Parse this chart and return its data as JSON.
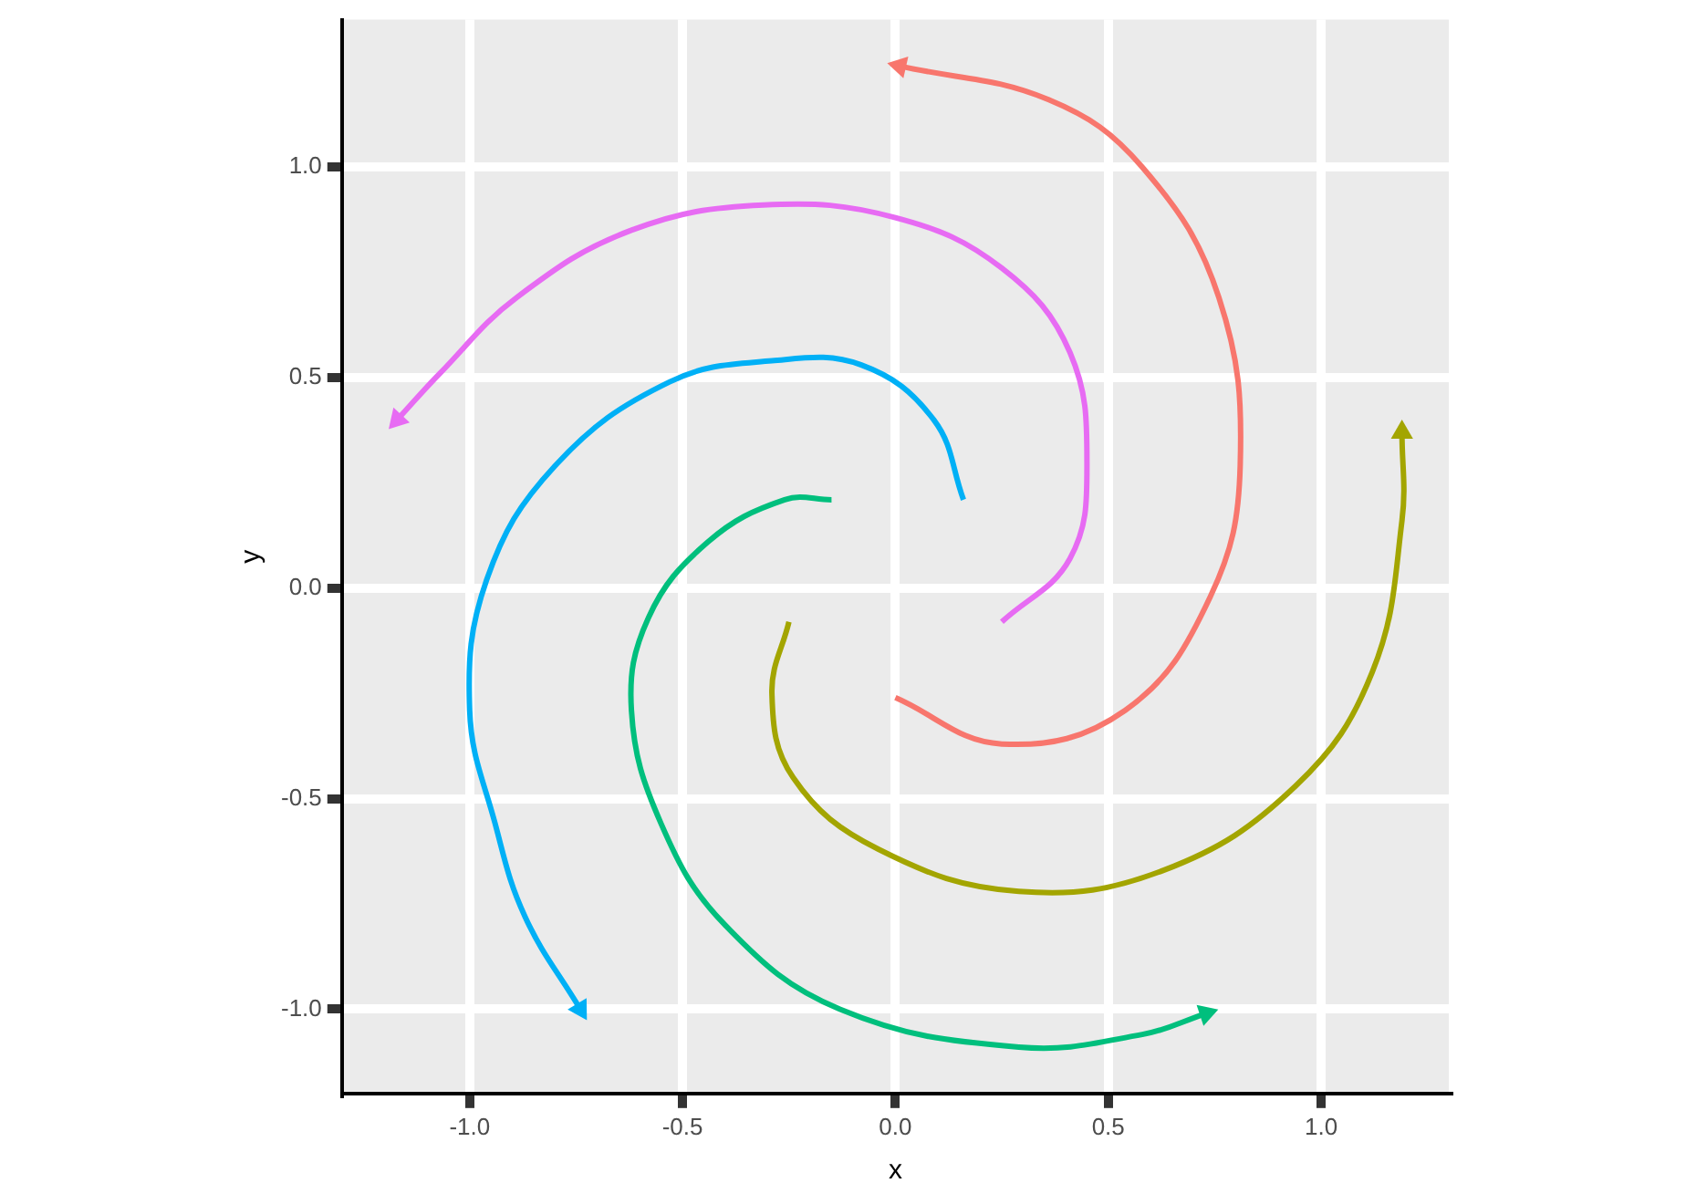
{
  "chart_data": {
    "type": "line",
    "xlabel": "x",
    "ylabel": "y",
    "xlim": [
      -1.3,
      1.3
    ],
    "ylim": [
      -1.2,
      1.35
    ],
    "xticks": [
      {
        "value": -1,
        "label": "-1.0"
      },
      {
        "value": -0.5,
        "label": "-0.5"
      },
      {
        "value": 0,
        "label": "0.0"
      },
      {
        "value": 0.5,
        "label": "0.5"
      },
      {
        "value": 1,
        "label": "1.0"
      }
    ],
    "yticks": [
      {
        "value": -1,
        "label": "-1.0"
      },
      {
        "value": -0.5,
        "label": "-0.5"
      },
      {
        "value": 0,
        "label": "0.0"
      },
      {
        "value": 0.5,
        "label": "0.5"
      },
      {
        "value": 1,
        "label": "1.0"
      }
    ],
    "grid": true,
    "series": [
      {
        "color": "#f8766d",
        "x": [
          0.0,
          0.25,
          0.54,
          0.74,
          0.81,
          0.76,
          0.58,
          0.36,
          0.01
        ],
        "values": [
          -0.26,
          -0.37,
          -0.29,
          -0.02,
          0.29,
          0.69,
          1.0,
          1.16,
          1.24
        ]
      },
      {
        "color": "#e76bf3",
        "x": [
          0.25,
          0.41,
          0.45,
          0.41,
          0.25,
          0.0,
          -0.31,
          -0.62,
          -0.89,
          -1.07,
          -1.17
        ],
        "values": [
          -0.08,
          0.07,
          0.29,
          0.56,
          0.76,
          0.88,
          0.91,
          0.85,
          0.69,
          0.51,
          0.4
        ]
      },
      {
        "color": "#00b0f6",
        "x": [
          0.16,
          0.09,
          -0.08,
          -0.29,
          -0.53,
          -0.8,
          -0.96,
          -1.0,
          -0.94,
          -0.87,
          -0.74
        ],
        "values": [
          0.21,
          0.4,
          0.53,
          0.54,
          0.49,
          0.29,
          0.02,
          -0.29,
          -0.56,
          -0.78,
          -1.0
        ]
      },
      {
        "color": "#00bf7d",
        "x": [
          -0.15,
          -0.26,
          -0.44,
          -0.58,
          -0.62,
          -0.55,
          -0.4,
          -0.13,
          0.29,
          0.58,
          0.73
        ],
        "values": [
          0.21,
          0.21,
          0.11,
          -0.07,
          -0.29,
          -0.56,
          -0.8,
          -1.0,
          -1.09,
          -1.06,
          -1.01
        ]
      },
      {
        "color": "#a3a500",
        "x": [
          -0.25,
          -0.29,
          -0.24,
          -0.04,
          0.29,
          0.63,
          0.94,
          1.12,
          1.19,
          1.19
        ],
        "values": [
          -0.08,
          -0.25,
          -0.45,
          -0.62,
          -0.72,
          -0.67,
          -0.47,
          -0.2,
          0.16,
          0.37
        ]
      }
    ]
  }
}
